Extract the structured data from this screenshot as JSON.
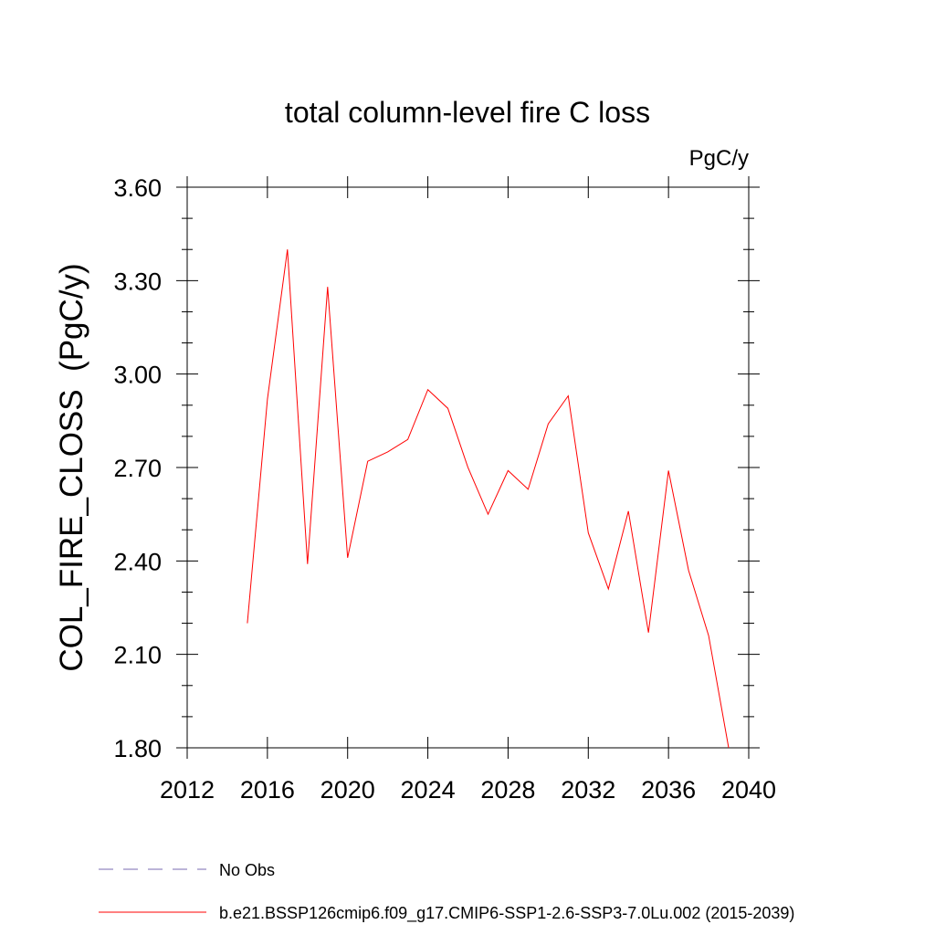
{
  "chart_data": {
    "type": "line",
    "title": "total column-level fire C loss",
    "units": "PgC/y",
    "ylabel": "COL_FIRE_CLOSS  (PgC/y)",
    "xlabel": "",
    "xlim": [
      2012,
      2040
    ],
    "ylim": [
      1.8,
      3.6
    ],
    "xticks": [
      2012,
      2016,
      2020,
      2024,
      2028,
      2032,
      2036,
      2040
    ],
    "xtick_labels": [
      "2012",
      "2016",
      "2020",
      "2024",
      "2028",
      "2032",
      "2036",
      "2040"
    ],
    "yticks": [
      1.8,
      2.1,
      2.4,
      2.7,
      3.0,
      3.3,
      3.6
    ],
    "ytick_labels": [
      "1.80",
      "2.10",
      "2.40",
      "2.70",
      "3.00",
      "3.30",
      "3.60"
    ],
    "series": [
      {
        "name": "b.e21.BSSP126cmip6.f09_g17.CMIP6-SSP1-2.6-SSP3-7.0Lu.002 (2015-2039)",
        "color": "#ff0000",
        "dash": "solid",
        "x": [
          2015,
          2016,
          2017,
          2018,
          2019,
          2020,
          2021,
          2022,
          2023,
          2024,
          2025,
          2026,
          2027,
          2028,
          2029,
          2030,
          2031,
          2032,
          2033,
          2034,
          2035,
          2036,
          2037,
          2038,
          2039
        ],
        "values": [
          2.2,
          2.92,
          3.4,
          2.39,
          3.28,
          2.41,
          2.72,
          2.75,
          2.79,
          2.95,
          2.89,
          2.7,
          2.55,
          2.69,
          2.63,
          2.84,
          2.93,
          2.49,
          2.31,
          2.56,
          2.17,
          2.69,
          2.37,
          2.16,
          1.8
        ]
      }
    ],
    "legend": {
      "position": "bottom-left",
      "entries": [
        {
          "label": "No Obs",
          "color": "#7a6ab0",
          "dash": "dashed"
        },
        {
          "label": "b.e21.BSSP126cmip6.f09_g17.CMIP6-SSP1-2.6-SSP3-7.0Lu.002 (2015-2039)",
          "color": "#ff0000",
          "dash": "solid"
        }
      ]
    }
  }
}
